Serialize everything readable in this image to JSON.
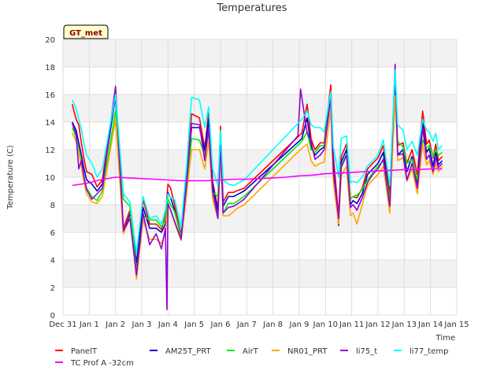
{
  "chart_data": {
    "type": "line",
    "title": "Temperatures",
    "xlabel": "Time",
    "ylabel": "Temperature (C)",
    "badge": "GT_met",
    "ylim": [
      0,
      20
    ],
    "xlim": [
      0,
      15
    ],
    "yticks": [
      0,
      2,
      4,
      6,
      8,
      10,
      12,
      14,
      16,
      18,
      20
    ],
    "xtick_labels": [
      "Dec 31",
      "Jan 1",
      "Jan 2",
      "Jan 3",
      "Jan 4",
      "Jan 5",
      "Jan 6",
      "Jan 7",
      "Jan 8",
      "Jan 9",
      "Jan 10",
      "Jan 11",
      "Jan 12",
      "Jan 13",
      "Jan 14",
      "Jan 15"
    ],
    "grid": true,
    "series": [
      {
        "name": "PanelT",
        "color": "#ff0000",
        "x": [
          0.35,
          0.5,
          0.6,
          0.7,
          0.8,
          0.9,
          1.1,
          1.3,
          1.5,
          2.0,
          2.3,
          2.55,
          2.8,
          3.05,
          3.3,
          3.55,
          3.75,
          3.9,
          4.0,
          4.1,
          4.25,
          4.5,
          4.7,
          4.9,
          5.2,
          5.4,
          5.55,
          5.7,
          5.9,
          6.0,
          6.1,
          6.3,
          6.5,
          6.6,
          6.9,
          9.1,
          9.3,
          9.45,
          9.6,
          9.8,
          9.95,
          10.2,
          10.3,
          10.5,
          10.6,
          10.8,
          10.95,
          11.05,
          11.2,
          11.4,
          11.6,
          11.8,
          12.0,
          12.2,
          12.45,
          12.65,
          12.75,
          12.95,
          13.1,
          13.3,
          13.5,
          13.7,
          13.85,
          13.95,
          14.1,
          14.2,
          14.3,
          14.45
        ],
        "y": [
          15.3,
          14.2,
          13.8,
          12.5,
          11.3,
          10.4,
          10.2,
          9.3,
          9.8,
          16.4,
          6.3,
          7.6,
          3.2,
          8.4,
          6.6,
          6.6,
          6.2,
          7.2,
          9.5,
          9.2,
          8.0,
          5.8,
          10.3,
          14.6,
          14.3,
          12.1,
          14.7,
          9.7,
          7.7,
          13.7,
          8.2,
          8.9,
          8.9,
          9.0,
          9.2,
          13.2,
          15.3,
          12.8,
          12.0,
          12.5,
          12.5,
          16.7,
          11.5,
          7.2,
          11.5,
          12.4,
          8.4,
          8.6,
          8.5,
          9.2,
          10.6,
          11.0,
          11.4,
          12.3,
          8.8,
          17.2,
          12.3,
          12.5,
          11.0,
          12.0,
          10.2,
          14.8,
          12.4,
          12.7,
          11.4,
          12.4,
          11.2,
          11.5
        ]
      },
      {
        "name": "AM25T_PRT",
        "color": "#0000cc",
        "x": [
          0.35,
          0.5,
          0.6,
          0.7,
          0.8,
          0.9,
          1.1,
          1.3,
          1.5,
          2.0,
          2.3,
          2.55,
          2.8,
          3.05,
          3.3,
          3.55,
          3.75,
          3.9,
          4.0,
          4.1,
          4.25,
          4.5,
          4.7,
          4.9,
          5.2,
          5.4,
          5.55,
          5.7,
          5.9,
          6.0,
          6.1,
          6.3,
          6.5,
          6.6,
          6.9,
          9.1,
          9.3,
          9.45,
          9.6,
          9.8,
          9.95,
          10.2,
          10.3,
          10.5,
          10.6,
          10.8,
          10.95,
          11.05,
          11.2,
          11.4,
          11.6,
          11.8,
          12.0,
          12.2,
          12.45,
          12.65,
          12.75,
          12.95,
          13.1,
          13.3,
          13.5,
          13.7,
          13.85,
          13.95,
          14.1,
          14.2,
          14.3,
          14.45
        ],
        "y": [
          14.0,
          13.4,
          12.5,
          11.6,
          10.6,
          9.8,
          9.5,
          9.0,
          9.5,
          15.9,
          6.0,
          7.3,
          3.8,
          7.8,
          6.3,
          6.3,
          6.0,
          6.6,
          8.9,
          8.5,
          7.6,
          5.7,
          9.8,
          13.6,
          13.6,
          11.9,
          14.2,
          9.5,
          7.5,
          13.2,
          7.9,
          8.6,
          8.6,
          8.7,
          9.0,
          12.8,
          14.3,
          12.2,
          11.6,
          12.0,
          12.2,
          16.1,
          10.9,
          6.5,
          11.1,
          12.0,
          8.0,
          8.3,
          8.1,
          8.8,
          10.2,
          10.6,
          11.0,
          11.8,
          8.3,
          16.9,
          11.6,
          12.0,
          10.4,
          11.5,
          9.6,
          14.0,
          11.8,
          12.1,
          10.8,
          11.8,
          10.9,
          11.2
        ]
      },
      {
        "name": "AirT",
        "color": "#00ee00",
        "x": [
          0.35,
          0.5,
          0.6,
          0.7,
          0.8,
          0.9,
          1.1,
          1.3,
          1.5,
          2.0,
          2.3,
          2.55,
          2.8,
          3.05,
          3.3,
          3.55,
          3.75,
          3.9,
          4.0,
          4.1,
          4.25,
          4.5,
          4.7,
          4.9,
          5.2,
          5.4,
          5.55,
          5.7,
          5.9,
          6.0,
          6.1,
          6.3,
          6.5,
          6.6,
          6.9,
          9.1,
          9.3,
          9.45,
          9.6,
          9.8,
          9.95,
          10.2,
          10.3,
          10.5,
          10.6,
          10.8,
          10.95,
          11.05,
          11.2,
          11.4,
          11.6,
          11.8,
          12.0,
          12.2,
          12.45,
          12.65,
          12.75,
          12.95,
          13.1,
          13.3,
          13.5,
          13.7,
          13.85,
          13.95,
          14.1,
          14.2,
          14.3,
          14.45
        ],
        "y": [
          13.6,
          12.9,
          12.0,
          11.2,
          10.0,
          9.2,
          8.6,
          8.3,
          9.0,
          14.8,
          8.4,
          7.9,
          3.1,
          7.2,
          6.9,
          6.9,
          6.4,
          6.9,
          8.4,
          8.0,
          7.5,
          5.7,
          9.0,
          12.8,
          12.7,
          11.6,
          13.2,
          8.9,
          8.6,
          12.8,
          7.4,
          8.1,
          8.1,
          8.2,
          8.6,
          12.6,
          13.3,
          12.0,
          11.8,
          12.3,
          12.3,
          15.7,
          10.2,
          7.0,
          10.8,
          11.7,
          8.4,
          8.6,
          8.7,
          9.1,
          9.8,
          10.3,
          10.8,
          11.2,
          8.4,
          15.6,
          12.6,
          12.2,
          11.0,
          11.3,
          9.8,
          12.7,
          12.1,
          12.3,
          11.5,
          12.0,
          11.6,
          11.8
        ]
      },
      {
        "name": "NR01_PRT",
        "color": "#ffa500",
        "x": [
          0.35,
          0.5,
          0.6,
          0.7,
          0.8,
          0.9,
          1.1,
          1.3,
          1.5,
          2.0,
          2.3,
          2.55,
          2.8,
          3.05,
          3.3,
          3.55,
          3.75,
          3.9,
          4.0,
          4.1,
          4.25,
          4.5,
          4.7,
          4.9,
          5.2,
          5.4,
          5.55,
          5.7,
          5.9,
          6.0,
          6.1,
          6.3,
          6.5,
          6.6,
          6.9,
          9.1,
          9.3,
          9.45,
          9.6,
          9.8,
          9.95,
          10.2,
          10.3,
          10.5,
          10.6,
          10.8,
          10.95,
          11.05,
          11.2,
          11.4,
          11.6,
          11.8,
          12.0,
          12.2,
          12.45,
          12.65,
          12.75,
          12.95,
          13.1,
          13.3,
          13.5,
          13.7,
          13.85,
          13.95,
          14.1,
          14.2,
          14.3,
          14.45
        ],
        "y": [
          13.2,
          12.6,
          11.8,
          10.8,
          9.6,
          8.8,
          8.2,
          8.1,
          8.6,
          14.2,
          5.9,
          7.1,
          2.6,
          6.9,
          5.5,
          5.5,
          5.2,
          5.9,
          8.0,
          7.6,
          6.7,
          5.4,
          8.6,
          12.0,
          12.0,
          10.6,
          12.6,
          8.4,
          7.0,
          11.9,
          7.2,
          7.2,
          7.5,
          7.7,
          8.0,
          12.1,
          12.4,
          11.2,
          10.8,
          11.0,
          11.1,
          14.9,
          9.7,
          6.6,
          10.1,
          10.8,
          7.2,
          7.4,
          6.6,
          8.0,
          9.4,
          9.8,
          10.2,
          10.8,
          7.4,
          15.9,
          11.2,
          11.4,
          9.7,
          10.6,
          8.8,
          12.4,
          10.9,
          11.2,
          10.2,
          11.0,
          10.4,
          10.8
        ]
      },
      {
        "name": "li75_t",
        "color": "#9400d3",
        "x": [
          0.35,
          0.5,
          0.6,
          0.7,
          0.8,
          0.9,
          1.1,
          1.3,
          1.5,
          2.0,
          2.3,
          2.55,
          2.8,
          3.05,
          3.3,
          3.55,
          3.75,
          3.9,
          3.96,
          4.0,
          4.1,
          4.25,
          4.5,
          4.7,
          4.9,
          5.2,
          5.4,
          5.55,
          5.7,
          5.9,
          6.0,
          6.1,
          6.3,
          6.5,
          6.6,
          6.9,
          8.95,
          9.05,
          9.3,
          9.45,
          9.6,
          9.8,
          9.95,
          10.2,
          10.3,
          10.5,
          10.6,
          10.8,
          10.95,
          11.05,
          11.2,
          11.4,
          11.6,
          11.8,
          12.0,
          12.2,
          12.45,
          12.65,
          12.75,
          12.95,
          13.1,
          13.3,
          13.5,
          13.7,
          13.85,
          13.95,
          14.1,
          14.2,
          14.3,
          14.45
        ],
        "y": [
          13.9,
          13.1,
          10.6,
          11.2,
          10.0,
          9.1,
          8.4,
          8.8,
          9.2,
          16.6,
          6.1,
          7.0,
          2.9,
          7.4,
          5.1,
          5.9,
          4.8,
          6.3,
          0.4,
          8.1,
          7.6,
          6.8,
          5.5,
          9.4,
          13.9,
          13.8,
          11.2,
          13.6,
          9.0,
          7.0,
          12.6,
          7.4,
          7.8,
          7.9,
          8.0,
          8.4,
          13.0,
          16.4,
          13.2,
          12.6,
          11.3,
          11.6,
          12.0,
          15.8,
          10.4,
          7.0,
          10.7,
          11.6,
          7.8,
          8.0,
          7.6,
          8.5,
          9.6,
          10.2,
          10.6,
          11.3,
          7.9,
          18.2,
          11.6,
          11.7,
          9.8,
          11.0,
          9.2,
          13.6,
          11.3,
          11.6,
          10.4,
          11.4,
          10.7,
          11.0
        ]
      },
      {
        "name": "li77_temp",
        "color": "#00ffff",
        "x": [
          0.35,
          0.5,
          0.6,
          0.7,
          0.8,
          0.9,
          1.1,
          1.3,
          1.5,
          2.0,
          2.3,
          2.55,
          2.8,
          3.05,
          3.3,
          3.55,
          3.75,
          3.9,
          4.0,
          4.1,
          4.25,
          4.5,
          4.7,
          4.9,
          5.2,
          5.4,
          5.55,
          5.7,
          5.9,
          6.0,
          6.1,
          6.3,
          6.5,
          6.6,
          6.9,
          9.1,
          9.3,
          9.45,
          9.6,
          9.8,
          9.95,
          10.2,
          10.3,
          10.5,
          10.6,
          10.8,
          10.95,
          11.05,
          11.2,
          11.4,
          11.6,
          11.8,
          12.0,
          12.2,
          12.45,
          12.65,
          12.75,
          12.95,
          13.1,
          13.3,
          13.5,
          13.7,
          13.85,
          13.95,
          14.1,
          14.2,
          14.3,
          14.45
        ],
        "y": [
          15.6,
          15.0,
          14.2,
          13.5,
          12.4,
          11.6,
          11.0,
          10.0,
          10.6,
          16.0,
          8.8,
          8.2,
          4.5,
          8.6,
          7.0,
          7.2,
          6.6,
          7.6,
          8.8,
          8.5,
          8.4,
          6.4,
          10.6,
          15.8,
          15.6,
          13.6,
          15.1,
          10.6,
          9.4,
          13.4,
          9.8,
          9.5,
          9.4,
          9.5,
          9.8,
          14.2,
          14.8,
          13.8,
          13.6,
          13.6,
          13.3,
          16.2,
          12.2,
          10.0,
          12.8,
          13.0,
          9.6,
          9.7,
          9.6,
          10.0,
          10.8,
          11.2,
          11.6,
          12.7,
          9.4,
          17.8,
          13.8,
          13.4,
          12.0,
          12.6,
          11.6,
          14.2,
          13.4,
          13.3,
          12.6,
          13.2,
          12.0,
          12.3
        ]
      },
      {
        "name": "TC Prof A -32cm",
        "color": "#ff00ff",
        "x": [
          0.35,
          0.7,
          1.0,
          1.4,
          2.0,
          2.5,
          3.0,
          3.5,
          4.0,
          4.5,
          5.0,
          5.5,
          6.0,
          6.5,
          7.0,
          7.5,
          8.0,
          8.5,
          9.0,
          9.5,
          10.0,
          10.5,
          11.0,
          11.5,
          12.0,
          12.5,
          13.0,
          13.5,
          14.0,
          14.45
        ],
        "y": [
          9.4,
          9.5,
          9.6,
          9.8,
          10.0,
          9.95,
          9.9,
          9.85,
          9.8,
          9.75,
          9.75,
          9.75,
          9.8,
          9.85,
          9.85,
          9.9,
          9.95,
          10.0,
          10.1,
          10.15,
          10.25,
          10.3,
          10.35,
          10.4,
          10.45,
          10.5,
          10.55,
          10.55,
          10.6,
          10.6
        ]
      }
    ]
  }
}
